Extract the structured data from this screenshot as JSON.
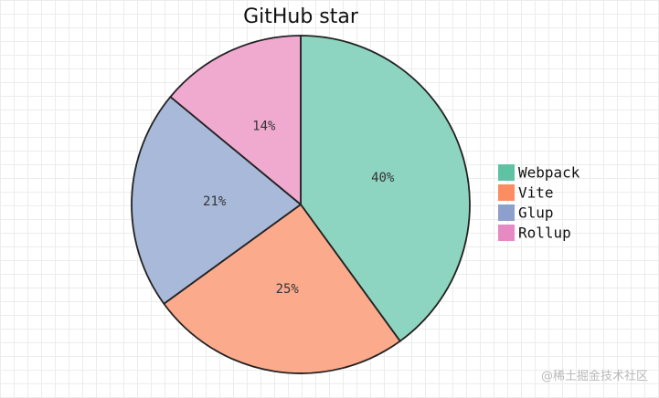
{
  "chart_data": {
    "type": "pie",
    "title": "GitHub star",
    "categories": [
      "Webpack",
      "Vite",
      "Glup",
      "Rollup"
    ],
    "values": [
      40,
      25,
      21,
      14
    ],
    "labels": [
      "40%",
      "25%",
      "21%",
      "14%"
    ],
    "colors": [
      "#8dd5c0",
      "#fcaa8c",
      "#a9b9d9",
      "#f1aacf"
    ],
    "legend_colors": [
      "#5ec3a2",
      "#fc8d62",
      "#8da0cb",
      "#e78ac3"
    ],
    "legend_position": "right",
    "start_angle": "top",
    "direction": "clockwise"
  },
  "watermark": "@稀土掘金技术社区"
}
